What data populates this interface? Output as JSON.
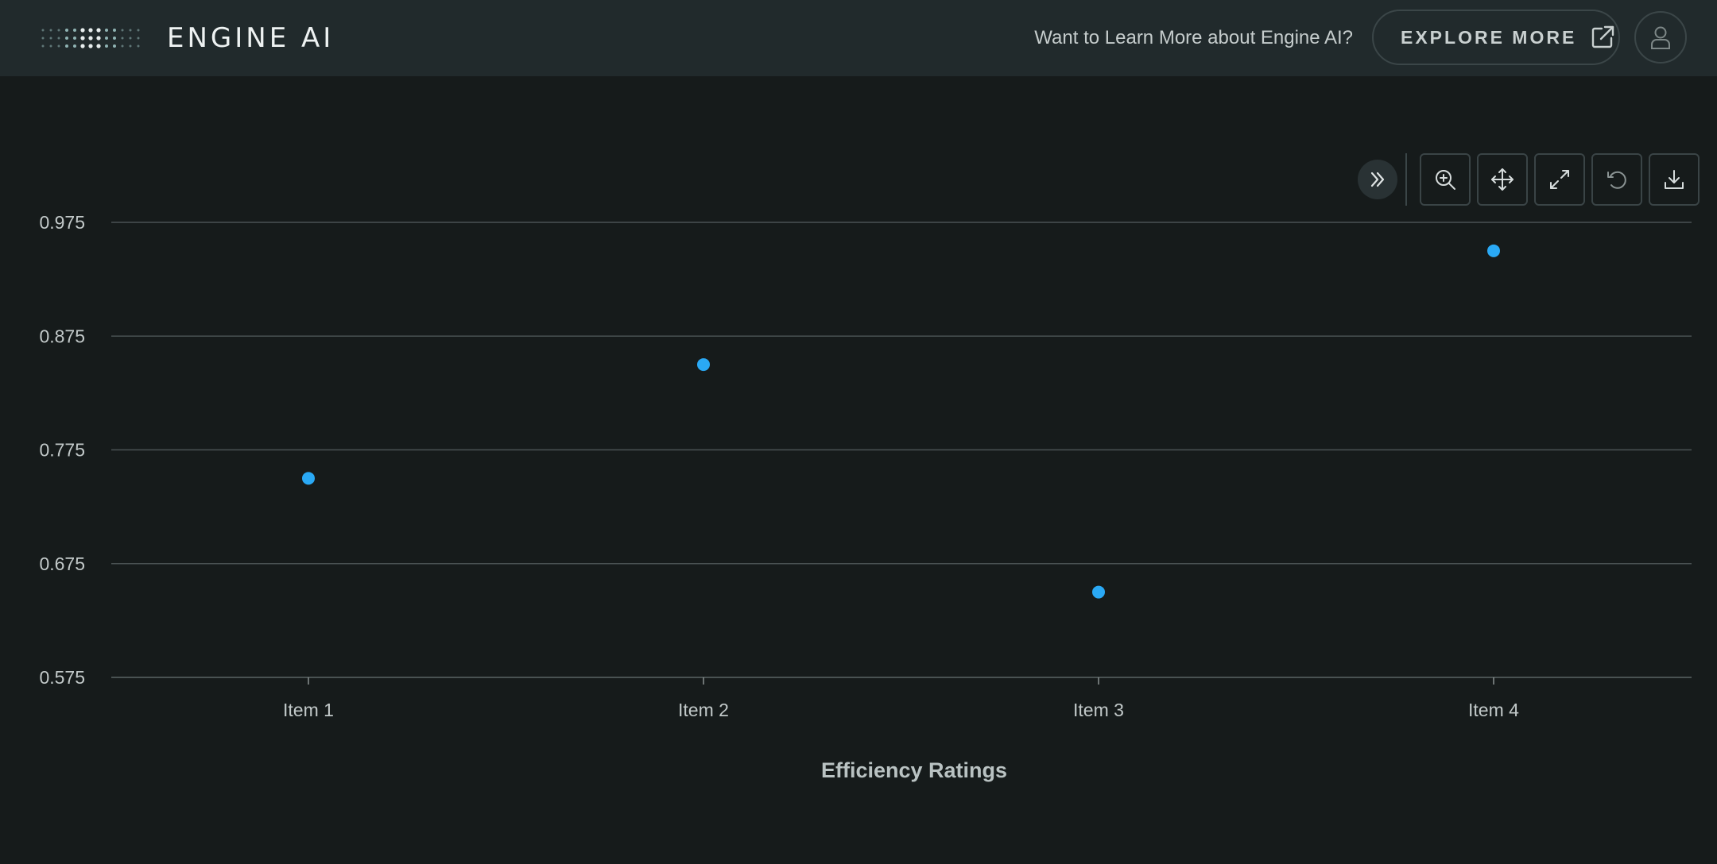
{
  "header": {
    "brand": "ENGINE AI",
    "promo_text": "Want to Learn More about Engine AI?",
    "explore_label": "EXPLORE MORE",
    "logo_icon": "dotted-logo-icon",
    "explore_icon": "external-link-icon",
    "user_icon": "user-icon"
  },
  "toolbar": {
    "items": [
      {
        "name": "collapse",
        "icon": "double-chevron-right-icon"
      },
      {
        "name": "zoom",
        "icon": "zoom-in-icon"
      },
      {
        "name": "pan",
        "icon": "move-icon"
      },
      {
        "name": "expand",
        "icon": "expand-icon"
      },
      {
        "name": "reset",
        "icon": "undo-icon"
      },
      {
        "name": "download",
        "icon": "download-icon"
      }
    ]
  },
  "colors": {
    "background": "#161b1b",
    "header": "#212a2c",
    "point": "#2aa9f5",
    "gridline": "#4a5354"
  },
  "chart_data": {
    "type": "scatter",
    "categories": [
      "Item 1",
      "Item 2",
      "Item 3",
      "Item 4"
    ],
    "values": [
      0.75,
      0.85,
      0.65,
      0.95
    ],
    "yticks": [
      "0.575",
      "0.675",
      "0.775",
      "0.875",
      "0.975"
    ],
    "ylim": [
      0.575,
      0.975
    ],
    "xlabel": "Efficiency Ratings",
    "ylabel": "",
    "title": "",
    "grid": true,
    "legend": "none"
  }
}
